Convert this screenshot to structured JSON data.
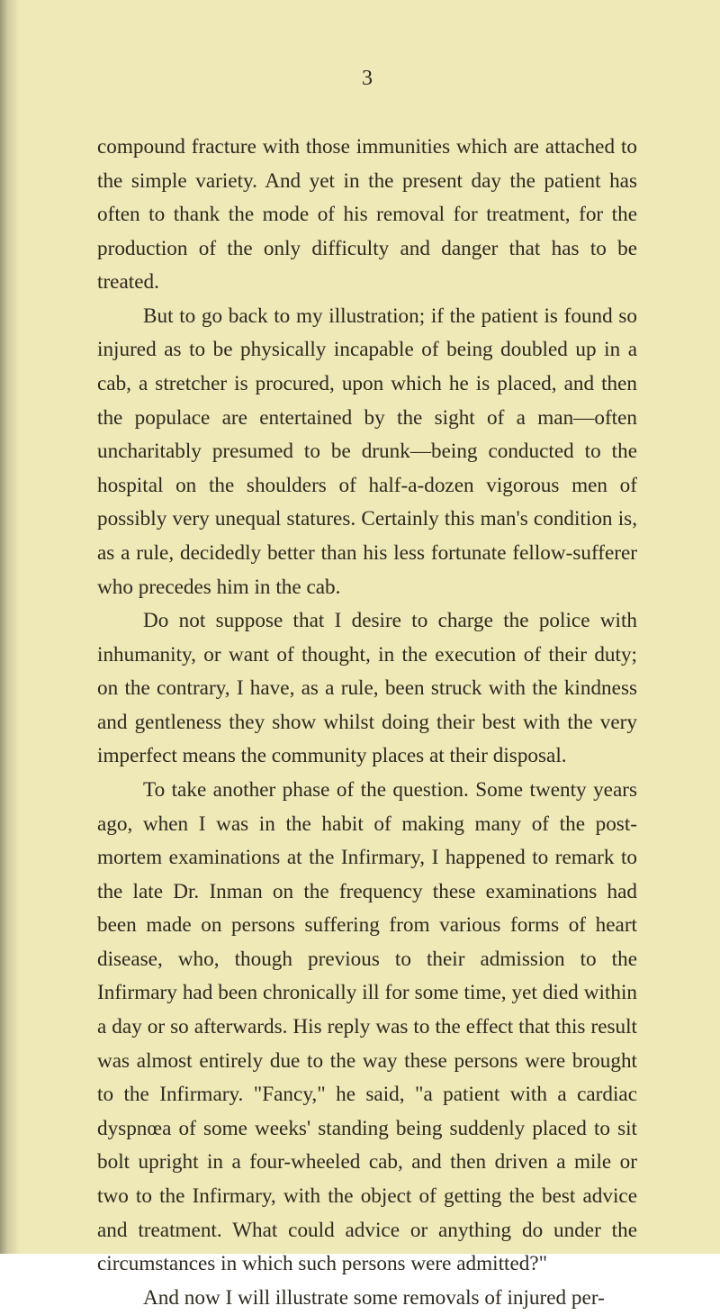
{
  "page": {
    "number": "3",
    "background_color": "#efe8b7",
    "text_color": "#2e2a1e",
    "font_family_note": "serif, old-style",
    "body_fontsize_pt": 17,
    "line_height": 1.62,
    "paragraphs": [
      {
        "indent": false,
        "text": "compound fracture with those immunities which are attached to the simple variety. And yet in the present day the patient has often to thank the mode of his removal for treatment, for the production of the only difficulty and danger that has to be treated."
      },
      {
        "indent": true,
        "text": "But to go back to my illustration; if the patient is found so injured as to be physically incapable of being doubled up in a cab, a stretcher is procured, upon which he is placed, and then the populace are entertained by the sight of a man—often uncharitably presumed to be drunk—being conducted to the hospital on the shoulders of half-a-dozen vigorous men of possibly very unequal statures. Certainly this man's condition is, as a rule, decidedly better than his less fortunate fellow-sufferer who precedes him in the cab."
      },
      {
        "indent": true,
        "text": "Do not suppose that I desire to charge the police with inhumanity, or want of thought, in the execution of their duty; on the contrary, I have, as a rule, been struck with the kindness and gentleness they show whilst doing their best with the very imperfect means the community places at their disposal."
      },
      {
        "indent": true,
        "text": "To take another phase of the question. Some twenty years ago, when I was in the habit of making many of the post-mortem examinations at the Infirmary, I happened to remark to the late Dr. Inman on the frequency these examinations had been made on persons suffering from various forms of heart disease, who, though previous to their admission to the Infirmary had been chronically ill for some time, yet died within a day or so afterwards. His reply was to the effect that this result was almost entirely due to the way these persons were brought to the Infirmary. \"Fancy,\" he said, \"a patient with a cardiac dyspnœa of some weeks' standing being suddenly placed to sit bolt upright in a four-wheeled cab, and then driven a mile or two to the Infirmary, with the object of getting the best advice and treatment. What could advice or anything do under the circumstances in which such persons were admitted?\""
      },
      {
        "indent": true,
        "text": "And now I will illustrate some removals of injured per-"
      }
    ]
  }
}
